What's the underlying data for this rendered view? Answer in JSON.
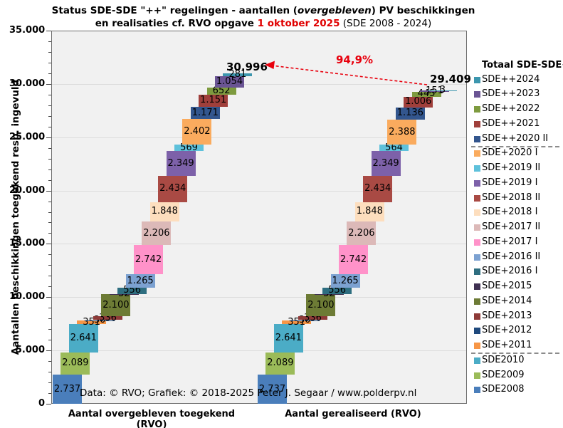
{
  "title": {
    "line1_pre": "Status SDE-SDE \"++\" regelingen  - aantallen (",
    "line1_italic": "overgebleven",
    "line1_post": ") PV beschikkingen",
    "line2_bold": "en realisaties cf. RVO opgave ",
    "line2_red": "1 oktober 2025",
    "line2_normal": "  (SDE 2008 - 2024)"
  },
  "y_axis": {
    "title": "Aantallen beschikkingen toegekend resp. ingevuld",
    "tick_labels": [
      "0",
      "5.000",
      "10.000",
      "15.000",
      "20.000",
      "25.000",
      "30.000",
      "35.000"
    ],
    "max": 35000,
    "major_step": 5000,
    "minor_step": 1000
  },
  "x_axis": {
    "left": "Aantal overgebleven toegekend (RVO)",
    "right": "Aantal gerealiseerd (RVO)"
  },
  "annotations": {
    "left_total": "30.996",
    "right_total": "29.409",
    "pct": "94,9%",
    "arrow_color": "#E8000D"
  },
  "credit": {
    "text": "Data: © RVO;  Grafiek:  © 2018-2025 Peter J. Segaar / www.polderpv.nl"
  },
  "legend": {
    "header": "Totaal SDE-SDE++"
  },
  "chart_data": {
    "type": "bar",
    "subtype": "stacked-staircase",
    "categories": [
      "Aantal overgebleven toegekend (RVO)",
      "Aantal gerealiseerd (RVO)"
    ],
    "ylim": [
      0,
      35000
    ],
    "grid": "horizontal, every 5.000",
    "legend_position": "right, top-to-bottom is reverse of stacking order",
    "totals": {
      "overgebleven": 30996,
      "gerealiseerd": 29409,
      "ratio_label": "94,9%"
    },
    "series": [
      {
        "name": "SDE2008",
        "color": "#4A7EBB",
        "values": [
          2737,
          2737
        ],
        "values_display": [
          "2.737",
          "2.737"
        ]
      },
      {
        "name": "SDE2009",
        "color": "#9BBB59",
        "values": [
          2089,
          2089
        ],
        "values_display": [
          "2.089",
          "2.089"
        ]
      },
      {
        "name": "SDE2010",
        "color": "#4BACC6",
        "values": [
          2641,
          2641
        ],
        "values_display": [
          "2.641",
          "2.641"
        ]
      },
      {
        "name": "SDE+2011",
        "color": "#F79646",
        "values": [
          351,
          351
        ],
        "values_display": [
          "351",
          "351"
        ],
        "legend_separator_after": true
      },
      {
        "name": "SDE+2012",
        "color": "#1F497D",
        "values": [
          30,
          30
        ],
        "values_display": [
          "30",
          "30"
        ]
      },
      {
        "name": "SDE+2013",
        "color": "#8E3A38",
        "values": [
          336,
          336
        ],
        "values_display": [
          "336",
          "336"
        ]
      },
      {
        "name": "SDE+2014",
        "color": "#6D7B35",
        "values": [
          2100,
          2100
        ],
        "values_display": [
          "2.100",
          "2.100"
        ]
      },
      {
        "name": "SDE+2015",
        "color": "#403152",
        "values": [
          32,
          32
        ],
        "values_display": [
          "32",
          "32"
        ]
      },
      {
        "name": "SDE+2016 I",
        "color": "#2E6E80",
        "values": [
          556,
          556
        ],
        "values_display": [
          "556",
          "556"
        ]
      },
      {
        "name": "SDE+2016 II",
        "color": "#7CA1D1",
        "values": [
          1265,
          1265
        ],
        "values_display": [
          "1.265",
          "1.265"
        ]
      },
      {
        "name": "SDE+2017 I",
        "color": "#FF92C9",
        "values": [
          2742,
          2742
        ],
        "values_display": [
          "2.742",
          "2.742"
        ]
      },
      {
        "name": "SDE+2017 II",
        "color": "#DCB9B8",
        "values": [
          2206,
          2206
        ],
        "values_display": [
          "2.206",
          "2.206"
        ]
      },
      {
        "name": "SDE+2018 I",
        "color": "#FDDEBE",
        "values": [
          1848,
          1848
        ],
        "values_display": [
          "1.848",
          "1.848"
        ]
      },
      {
        "name": "SDE+2018 II",
        "color": "#A94A44",
        "values": [
          2434,
          2434
        ],
        "values_display": [
          "2.434",
          "2.434"
        ]
      },
      {
        "name": "SDE+2019 I",
        "color": "#7D61A9",
        "values": [
          2349,
          2349
        ],
        "values_display": [
          "2.349",
          "2.349"
        ]
      },
      {
        "name": "SDE+2019 II",
        "color": "#5EC1DB",
        "values": [
          569,
          564
        ],
        "values_display": [
          "569",
          "564"
        ]
      },
      {
        "name": "SDE+2020 I",
        "color": "#FAAB5E",
        "values": [
          2402,
          2388
        ],
        "values_display": [
          "2.402",
          "2.388"
        ]
      },
      {
        "name": "SDE++2020 II",
        "color": "#33568E",
        "values": [
          1171,
          1136
        ],
        "values_display": [
          "1.171",
          "1.136"
        ],
        "legend_separator_after": true
      },
      {
        "name": "SDE++2021",
        "color": "#A03F3B",
        "values": [
          1151,
          1006
        ],
        "values_display": [
          "1.151",
          "1.006"
        ]
      },
      {
        "name": "SDE++2022",
        "color": "#7E9B3F",
        "values": [
          652,
          445
        ],
        "values_display": [
          "652",
          "445"
        ]
      },
      {
        "name": "SDE++2023",
        "color": "#6A5494",
        "values": [
          1054,
          151
        ],
        "values_display": [
          "1.054",
          "151"
        ]
      },
      {
        "name": "SDE++2024",
        "color": "#3C96AE",
        "values": [
          281,
          3
        ],
        "values_display": [
          "281",
          "3"
        ]
      }
    ]
  }
}
